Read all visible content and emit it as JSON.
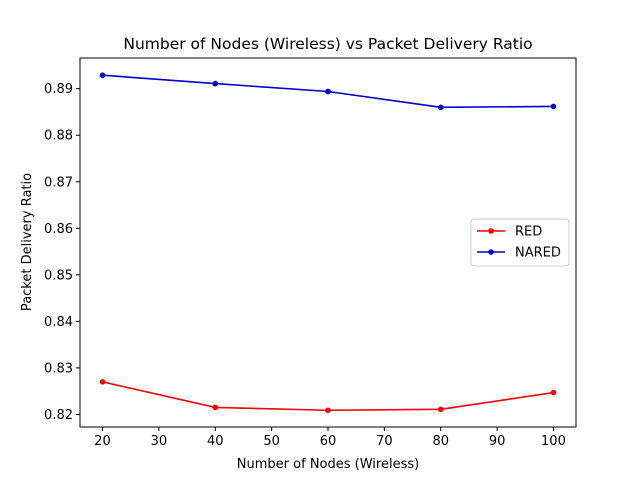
{
  "chart_data": {
    "type": "line",
    "title": "Number of Nodes (Wireless)  vs Packet Delivery Ratio",
    "xlabel": "Number of Nodes (Wireless)",
    "ylabel": "Packet Delivery Ratio",
    "x": [
      20,
      40,
      60,
      80,
      100
    ],
    "xlim": [
      16,
      104
    ],
    "ylim": [
      0.8173,
      0.8966
    ],
    "xticks": [
      20,
      30,
      40,
      50,
      60,
      70,
      80,
      90,
      100
    ],
    "yticks": [
      0.82,
      0.83,
      0.84,
      0.85,
      0.86,
      0.87,
      0.88,
      0.89
    ],
    "grid": false,
    "legend_position": "center-right",
    "series": [
      {
        "name": "RED",
        "color": "#ff0000",
        "values": [
          0.827,
          0.8215,
          0.8209,
          0.8211,
          0.8247
        ]
      },
      {
        "name": "NARED",
        "color": "#0000cc",
        "values": [
          0.8929,
          0.8911,
          0.8894,
          0.886,
          0.8862
        ]
      }
    ]
  }
}
